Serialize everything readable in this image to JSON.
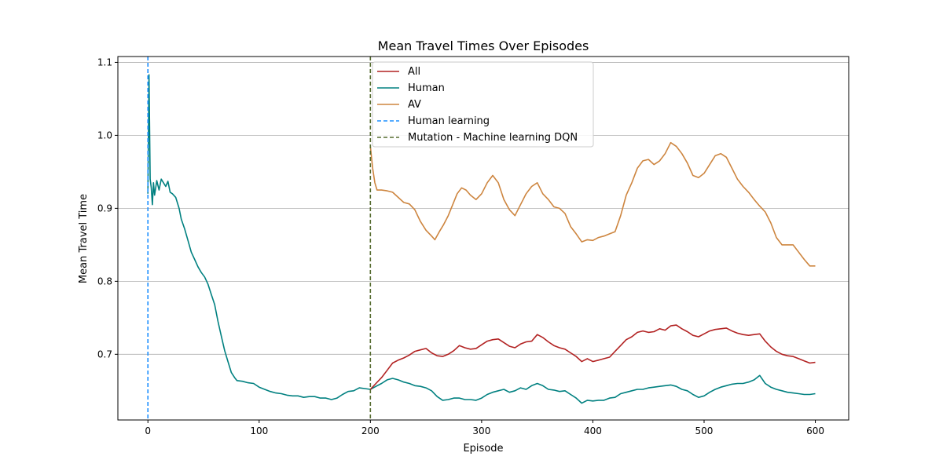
{
  "chart_data": {
    "type": "line",
    "title": "Mean Travel Times Over Episodes",
    "xlabel": "Episode",
    "ylabel": "Mean Travel Time",
    "xlim": [
      -27,
      630
    ],
    "ylim": [
      0.61,
      1.108
    ],
    "x_ticks": [
      0,
      100,
      200,
      300,
      400,
      500,
      600
    ],
    "y_ticks": [
      0.7,
      0.8,
      0.9,
      1.0,
      1.1
    ],
    "y_tick_labels": [
      "0.7",
      "0.8",
      "0.9",
      "1.0",
      "1.1"
    ],
    "grid": "horizontal",
    "legend_position": "top-center",
    "series": [
      {
        "name": "All",
        "color": "#b22222",
        "points": [
          [
            200,
            0.652
          ],
          [
            205,
            0.66
          ],
          [
            210,
            0.668
          ],
          [
            215,
            0.678
          ],
          [
            220,
            0.688
          ],
          [
            225,
            0.692
          ],
          [
            230,
            0.695
          ],
          [
            235,
            0.699
          ],
          [
            240,
            0.704
          ],
          [
            245,
            0.706
          ],
          [
            250,
            0.708
          ],
          [
            255,
            0.702
          ],
          [
            260,
            0.698
          ],
          [
            265,
            0.697
          ],
          [
            270,
            0.7
          ],
          [
            275,
            0.705
          ],
          [
            280,
            0.712
          ],
          [
            285,
            0.709
          ],
          [
            290,
            0.707
          ],
          [
            295,
            0.708
          ],
          [
            300,
            0.713
          ],
          [
            305,
            0.718
          ],
          [
            310,
            0.72
          ],
          [
            315,
            0.721
          ],
          [
            320,
            0.716
          ],
          [
            325,
            0.711
          ],
          [
            330,
            0.709
          ],
          [
            335,
            0.714
          ],
          [
            340,
            0.717
          ],
          [
            345,
            0.718
          ],
          [
            350,
            0.727
          ],
          [
            355,
            0.723
          ],
          [
            360,
            0.717
          ],
          [
            365,
            0.712
          ],
          [
            370,
            0.709
          ],
          [
            375,
            0.707
          ],
          [
            380,
            0.702
          ],
          [
            385,
            0.697
          ],
          [
            390,
            0.69
          ],
          [
            395,
            0.694
          ],
          [
            400,
            0.69
          ],
          [
            405,
            0.692
          ],
          [
            410,
            0.694
          ],
          [
            415,
            0.696
          ],
          [
            420,
            0.704
          ],
          [
            425,
            0.712
          ],
          [
            430,
            0.72
          ],
          [
            435,
            0.724
          ],
          [
            440,
            0.73
          ],
          [
            445,
            0.732
          ],
          [
            450,
            0.73
          ],
          [
            455,
            0.731
          ],
          [
            460,
            0.735
          ],
          [
            465,
            0.733
          ],
          [
            470,
            0.739
          ],
          [
            475,
            0.74
          ],
          [
            480,
            0.735
          ],
          [
            485,
            0.731
          ],
          [
            490,
            0.726
          ],
          [
            495,
            0.724
          ],
          [
            500,
            0.728
          ],
          [
            505,
            0.732
          ],
          [
            510,
            0.734
          ],
          [
            515,
            0.735
          ],
          [
            520,
            0.736
          ],
          [
            525,
            0.732
          ],
          [
            530,
            0.729
          ],
          [
            535,
            0.727
          ],
          [
            540,
            0.726
          ],
          [
            545,
            0.727
          ],
          [
            550,
            0.728
          ],
          [
            555,
            0.718
          ],
          [
            560,
            0.71
          ],
          [
            565,
            0.704
          ],
          [
            570,
            0.7
          ],
          [
            575,
            0.698
          ],
          [
            580,
            0.697
          ],
          [
            585,
            0.694
          ],
          [
            590,
            0.691
          ],
          [
            595,
            0.688
          ],
          [
            600,
            0.689
          ]
        ]
      },
      {
        "name": "Human",
        "color": "#008080",
        "points": [
          [
            0,
            0.92
          ],
          [
            1,
            1.083
          ],
          [
            2,
            0.94
          ],
          [
            3,
            0.928
          ],
          [
            4,
            0.905
          ],
          [
            5,
            0.935
          ],
          [
            6,
            0.918
          ],
          [
            8,
            0.938
          ],
          [
            10,
            0.925
          ],
          [
            12,
            0.94
          ],
          [
            14,
            0.935
          ],
          [
            16,
            0.93
          ],
          [
            18,
            0.937
          ],
          [
            20,
            0.922
          ],
          [
            22,
            0.92
          ],
          [
            25,
            0.915
          ],
          [
            28,
            0.9
          ],
          [
            30,
            0.885
          ],
          [
            33,
            0.872
          ],
          [
            36,
            0.856
          ],
          [
            39,
            0.84
          ],
          [
            42,
            0.83
          ],
          [
            45,
            0.82
          ],
          [
            48,
            0.812
          ],
          [
            51,
            0.806
          ],
          [
            54,
            0.796
          ],
          [
            57,
            0.782
          ],
          [
            60,
            0.768
          ],
          [
            63,
            0.745
          ],
          [
            66,
            0.725
          ],
          [
            69,
            0.705
          ],
          [
            72,
            0.69
          ],
          [
            75,
            0.675
          ],
          [
            78,
            0.668
          ],
          [
            80,
            0.664
          ],
          [
            85,
            0.663
          ],
          [
            90,
            0.661
          ],
          [
            95,
            0.66
          ],
          [
            100,
            0.655
          ],
          [
            105,
            0.652
          ],
          [
            110,
            0.649
          ],
          [
            115,
            0.647
          ],
          [
            120,
            0.646
          ],
          [
            125,
            0.644
          ],
          [
            130,
            0.643
          ],
          [
            135,
            0.643
          ],
          [
            140,
            0.641
          ],
          [
            145,
            0.642
          ],
          [
            150,
            0.642
          ],
          [
            155,
            0.64
          ],
          [
            160,
            0.64
          ],
          [
            165,
            0.638
          ],
          [
            170,
            0.64
          ],
          [
            175,
            0.645
          ],
          [
            180,
            0.649
          ],
          [
            185,
            0.65
          ],
          [
            190,
            0.654
          ],
          [
            195,
            0.653
          ],
          [
            200,
            0.652
          ],
          [
            205,
            0.656
          ],
          [
            210,
            0.66
          ],
          [
            215,
            0.665
          ],
          [
            220,
            0.667
          ],
          [
            225,
            0.665
          ],
          [
            230,
            0.662
          ],
          [
            235,
            0.66
          ],
          [
            240,
            0.657
          ],
          [
            245,
            0.656
          ],
          [
            250,
            0.654
          ],
          [
            255,
            0.65
          ],
          [
            260,
            0.642
          ],
          [
            265,
            0.637
          ],
          [
            270,
            0.638
          ],
          [
            275,
            0.64
          ],
          [
            280,
            0.64
          ],
          [
            285,
            0.638
          ],
          [
            290,
            0.638
          ],
          [
            295,
            0.637
          ],
          [
            300,
            0.64
          ],
          [
            305,
            0.645
          ],
          [
            310,
            0.648
          ],
          [
            315,
            0.65
          ],
          [
            320,
            0.652
          ],
          [
            325,
            0.648
          ],
          [
            330,
            0.65
          ],
          [
            335,
            0.654
          ],
          [
            340,
            0.652
          ],
          [
            345,
            0.657
          ],
          [
            350,
            0.66
          ],
          [
            355,
            0.657
          ],
          [
            360,
            0.652
          ],
          [
            365,
            0.651
          ],
          [
            370,
            0.649
          ],
          [
            375,
            0.65
          ],
          [
            380,
            0.645
          ],
          [
            385,
            0.64
          ],
          [
            390,
            0.633
          ],
          [
            395,
            0.637
          ],
          [
            400,
            0.636
          ],
          [
            405,
            0.637
          ],
          [
            410,
            0.637
          ],
          [
            415,
            0.64
          ],
          [
            420,
            0.641
          ],
          [
            425,
            0.646
          ],
          [
            430,
            0.648
          ],
          [
            435,
            0.65
          ],
          [
            440,
            0.652
          ],
          [
            445,
            0.652
          ],
          [
            450,
            0.654
          ],
          [
            455,
            0.655
          ],
          [
            460,
            0.656
          ],
          [
            465,
            0.657
          ],
          [
            470,
            0.658
          ],
          [
            475,
            0.656
          ],
          [
            480,
            0.652
          ],
          [
            485,
            0.65
          ],
          [
            490,
            0.645
          ],
          [
            495,
            0.641
          ],
          [
            500,
            0.643
          ],
          [
            505,
            0.648
          ],
          [
            510,
            0.652
          ],
          [
            515,
            0.655
          ],
          [
            520,
            0.657
          ],
          [
            525,
            0.659
          ],
          [
            530,
            0.66
          ],
          [
            535,
            0.66
          ],
          [
            540,
            0.662
          ],
          [
            545,
            0.665
          ],
          [
            550,
            0.671
          ],
          [
            555,
            0.66
          ],
          [
            560,
            0.655
          ],
          [
            565,
            0.652
          ],
          [
            570,
            0.65
          ],
          [
            575,
            0.648
          ],
          [
            580,
            0.647
          ],
          [
            585,
            0.646
          ],
          [
            590,
            0.645
          ],
          [
            595,
            0.645
          ],
          [
            600,
            0.646
          ]
        ]
      },
      {
        "name": "AV",
        "color": "#cd853f",
        "points": [
          [
            200,
            0.985
          ],
          [
            202,
            0.955
          ],
          [
            204,
            0.935
          ],
          [
            206,
            0.925
          ],
          [
            210,
            0.925
          ],
          [
            215,
            0.924
          ],
          [
            220,
            0.922
          ],
          [
            225,
            0.915
          ],
          [
            230,
            0.908
          ],
          [
            235,
            0.906
          ],
          [
            240,
            0.898
          ],
          [
            245,
            0.882
          ],
          [
            250,
            0.87
          ],
          [
            255,
            0.862
          ],
          [
            258,
            0.857
          ],
          [
            262,
            0.868
          ],
          [
            266,
            0.878
          ],
          [
            270,
            0.89
          ],
          [
            274,
            0.905
          ],
          [
            278,
            0.92
          ],
          [
            282,
            0.928
          ],
          [
            286,
            0.925
          ],
          [
            290,
            0.918
          ],
          [
            295,
            0.912
          ],
          [
            300,
            0.92
          ],
          [
            305,
            0.935
          ],
          [
            310,
            0.945
          ],
          [
            315,
            0.935
          ],
          [
            320,
            0.912
          ],
          [
            325,
            0.898
          ],
          [
            330,
            0.89
          ],
          [
            335,
            0.905
          ],
          [
            340,
            0.92
          ],
          [
            345,
            0.93
          ],
          [
            350,
            0.935
          ],
          [
            355,
            0.92
          ],
          [
            360,
            0.912
          ],
          [
            365,
            0.902
          ],
          [
            370,
            0.9
          ],
          [
            375,
            0.893
          ],
          [
            380,
            0.875
          ],
          [
            385,
            0.865
          ],
          [
            390,
            0.854
          ],
          [
            395,
            0.857
          ],
          [
            400,
            0.856
          ],
          [
            405,
            0.86
          ],
          [
            410,
            0.862
          ],
          [
            415,
            0.865
          ],
          [
            420,
            0.868
          ],
          [
            425,
            0.89
          ],
          [
            430,
            0.918
          ],
          [
            435,
            0.935
          ],
          [
            440,
            0.955
          ],
          [
            445,
            0.965
          ],
          [
            450,
            0.967
          ],
          [
            455,
            0.96
          ],
          [
            460,
            0.965
          ],
          [
            465,
            0.975
          ],
          [
            470,
            0.99
          ],
          [
            475,
            0.985
          ],
          [
            480,
            0.975
          ],
          [
            485,
            0.962
          ],
          [
            490,
            0.945
          ],
          [
            495,
            0.942
          ],
          [
            500,
            0.948
          ],
          [
            505,
            0.96
          ],
          [
            510,
            0.972
          ],
          [
            515,
            0.975
          ],
          [
            520,
            0.97
          ],
          [
            525,
            0.955
          ],
          [
            530,
            0.94
          ],
          [
            535,
            0.93
          ],
          [
            540,
            0.922
          ],
          [
            545,
            0.912
          ],
          [
            550,
            0.903
          ],
          [
            555,
            0.895
          ],
          [
            560,
            0.88
          ],
          [
            565,
            0.86
          ],
          [
            570,
            0.85
          ],
          [
            575,
            0.85
          ],
          [
            580,
            0.85
          ],
          [
            585,
            0.84
          ],
          [
            590,
            0.83
          ],
          [
            595,
            0.821
          ],
          [
            600,
            0.821
          ]
        ]
      }
    ],
    "vlines": [
      {
        "name": "Human learning",
        "x": 0,
        "color": "#1e90ff"
      },
      {
        "name": "Mutation - Machine learning DQN",
        "x": 200,
        "color": "#556b2f"
      }
    ]
  }
}
